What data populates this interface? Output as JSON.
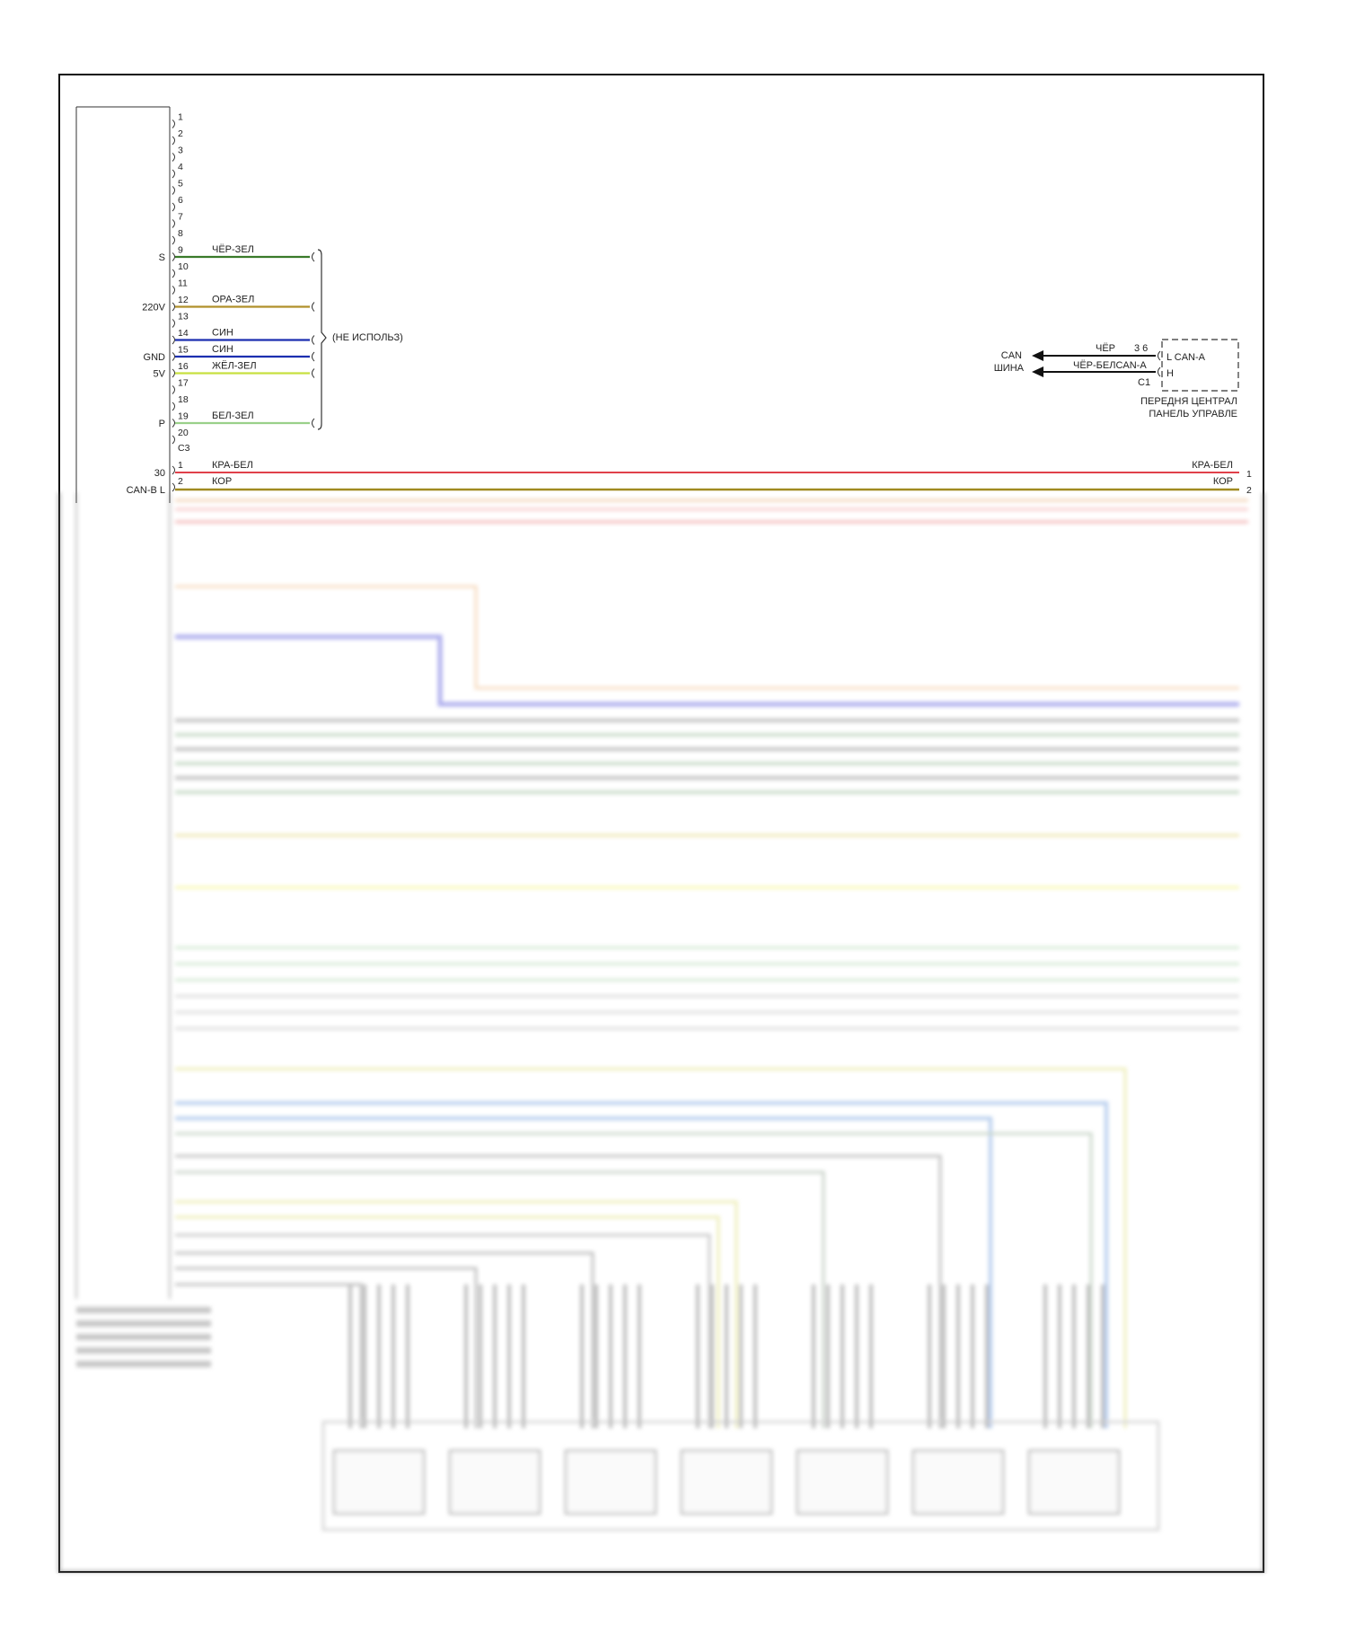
{
  "colors": {
    "frame": "#111111",
    "chr_zel": "#3a7a2a",
    "ora_zel": "#b0902a",
    "sin": "#1c2fb0",
    "zhel_zel": "#c8e040",
    "bel_zel": "#9ad08a",
    "kra_bel": "#e0404a",
    "kor": "#a08a20",
    "can": "#111111"
  },
  "module_c3": {
    "connector_label": "C3",
    "pins": [
      "1",
      "2",
      "3",
      "4",
      "5",
      "6",
      "7",
      "8",
      "9",
      "10",
      "11",
      "12",
      "13",
      "14",
      "15",
      "16",
      "17",
      "18",
      "19",
      "20"
    ],
    "wires": [
      {
        "pin": "9",
        "color_name": "ЧЁР-ЗЕЛ",
        "signal": "S",
        "color_key": "chr_zel"
      },
      {
        "pin": "12",
        "color_name": "ОРА-ЗЕЛ",
        "signal": "220V",
        "color_key": "ora_zel"
      },
      {
        "pin": "14",
        "color_name": "СИН",
        "signal": "",
        "color_key": "sin"
      },
      {
        "pin": "15",
        "color_name": "СИН",
        "signal": "GND",
        "color_key": "sin"
      },
      {
        "pin": "16",
        "color_name": "ЖЁЛ-ЗЕЛ",
        "signal": "5V",
        "color_key": "zhel_zel"
      },
      {
        "pin": "19",
        "color_name": "БЕЛ-ЗЕЛ",
        "signal": "P",
        "color_key": "bel_zel"
      }
    ],
    "unused_note": "(НЕ ИСПОЛЬЗ)"
  },
  "module_c2": {
    "wires": [
      {
        "pin": "1",
        "color_name": "КРА-БЕЛ",
        "signal": "30",
        "right_pin": "1",
        "right_label": "КРА-БЕЛ"
      },
      {
        "pin": "2",
        "color_name": "КОР",
        "signal": "CAN-B L",
        "right_pin": "2",
        "right_label": "КОР"
      }
    ]
  },
  "can_bus": {
    "label_line1": "CAN",
    "label_line2": "ШИНА",
    "wire_l": "ЧЁР",
    "wire_h": "ЧЁР-БЕЛ",
    "wire_h_signal": "CAN-A",
    "pin_numbers": "3 6",
    "connector": "C1",
    "pin_l": "L CAN-A",
    "pin_h": "H",
    "component_line1": "ПЕРЕДНЯ ЦЕНТРАЛ",
    "component_line2": "ПАНЕЛЬ УПРАВЛЕ"
  }
}
